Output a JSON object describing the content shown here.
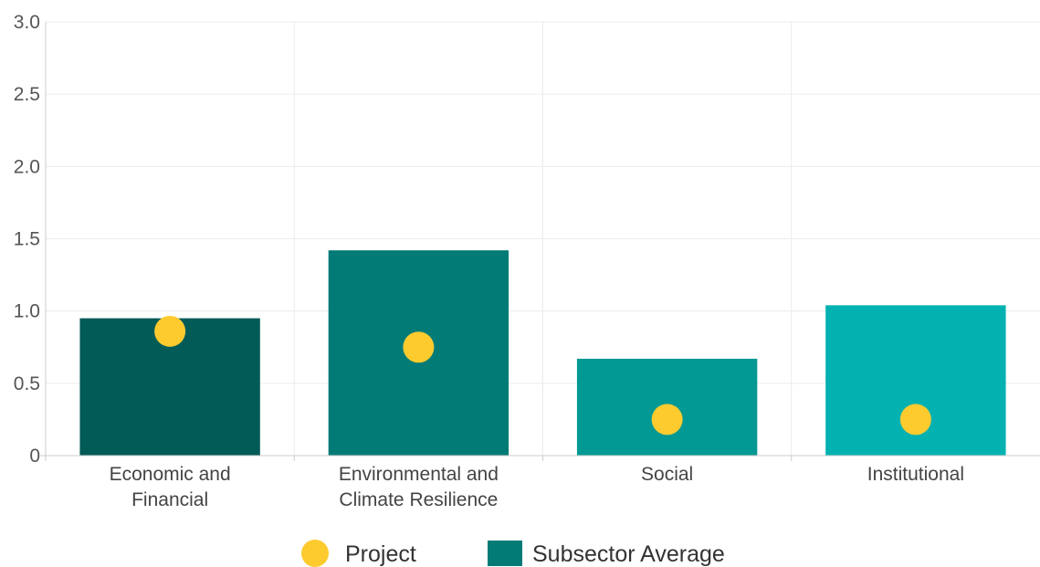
{
  "chart_data": {
    "type": "bar",
    "categories": [
      [
        "Economic and",
        "Financial"
      ],
      [
        "Environmental and",
        "Climate Resilience"
      ],
      [
        "Social"
      ],
      [
        "Institutional"
      ]
    ],
    "series": [
      {
        "name": "Subsector Average",
        "kind": "bar",
        "values": [
          0.95,
          1.42,
          0.67,
          1.04
        ],
        "colors": [
          "#035b58",
          "#027b77",
          "#029893",
          "#03b2b0"
        ],
        "legend_color": "#027b77"
      },
      {
        "name": "Project",
        "kind": "point",
        "values": [
          0.86,
          0.75,
          0.25,
          0.25
        ],
        "color": "#fecb2f"
      }
    ],
    "ylim": [
      0,
      3.0
    ],
    "yticks": [
      {
        "value": 0,
        "label": "0"
      },
      {
        "value": 0.5,
        "label": "0.5"
      },
      {
        "value": 1.0,
        "label": "1.0"
      },
      {
        "value": 1.5,
        "label": "1.5"
      },
      {
        "value": 2.0,
        "label": "2.0"
      },
      {
        "value": 2.5,
        "label": "2.5"
      },
      {
        "value": 3.0,
        "label": "3.0"
      }
    ],
    "grid": true,
    "legend_position": "bottom-center",
    "title": "",
    "xlabel": "",
    "ylabel": ""
  }
}
